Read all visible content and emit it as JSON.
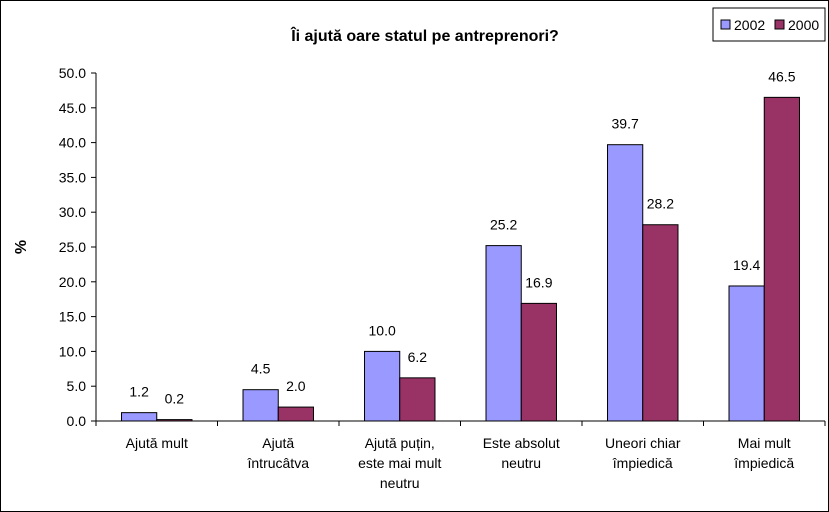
{
  "chart_data": {
    "type": "bar",
    "title": "Îi ajută oare statul pe antreprenori?",
    "y_label": "%",
    "categories": [
      "Ajută mult",
      "Ajută\nîntrucâtva",
      "Ajută puțin,\neste mai mult\nneutru",
      "Este absolut\nneutru",
      "Uneori chiar\nîmpiedică",
      "Mai mult\nîmpiedică"
    ],
    "series": [
      {
        "name": "2002",
        "color": "#9999ff",
        "values": [
          1.2,
          4.5,
          10.0,
          25.2,
          39.7,
          19.4
        ],
        "value_labels": [
          "1.2",
          "4.5",
          "10.0",
          "25.2",
          "39.7",
          "19.4"
        ]
      },
      {
        "name": "2000",
        "color": "#993366",
        "values": [
          0.2,
          2.0,
          6.2,
          16.9,
          28.2,
          46.5
        ],
        "value_labels": [
          "0.2",
          "2.0",
          "6.2",
          "16.9",
          "28.2",
          "46.5"
        ]
      }
    ],
    "ylim": [
      0,
      50
    ],
    "yticks": [
      {
        "value": 0,
        "label": "0.0"
      },
      {
        "value": 5,
        "label": "5.0"
      },
      {
        "value": 10,
        "label": "10.0"
      },
      {
        "value": 15,
        "label": "15.0"
      },
      {
        "value": 20,
        "label": "20.0"
      },
      {
        "value": 25,
        "label": "25.0"
      },
      {
        "value": 30,
        "label": "30.0"
      },
      {
        "value": 35,
        "label": "35.0"
      },
      {
        "value": 40,
        "label": "40.0"
      },
      {
        "value": 45,
        "label": "45.0"
      },
      {
        "value": 50,
        "label": "50.0"
      }
    ],
    "grid": false,
    "legend": "top-right"
  }
}
